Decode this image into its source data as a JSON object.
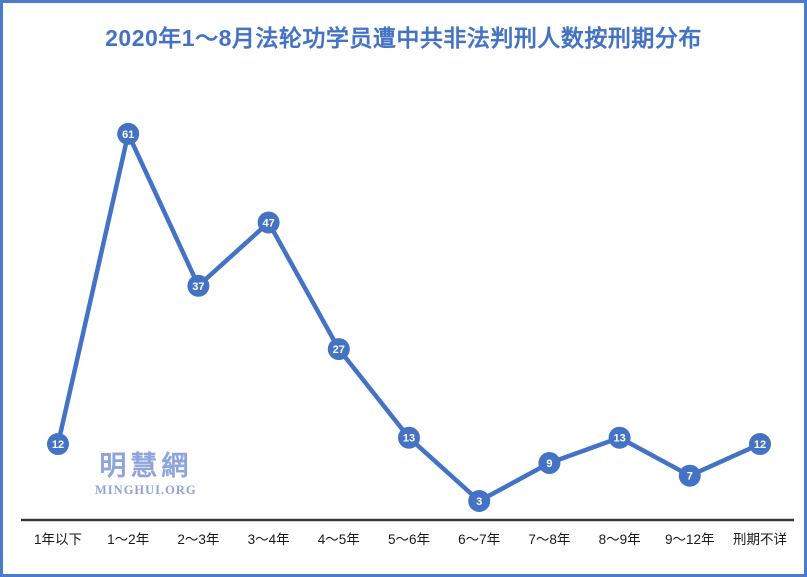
{
  "chart_data": {
    "type": "line",
    "title": "2020年1～8月法轮功学员遭中共非法判刑人数按刑期分布",
    "categories": [
      "1年以下",
      "1～2年",
      "2～3年",
      "3～4年",
      "4～5年",
      "5～6年",
      "6～7年",
      "7～8年",
      "8～9年",
      "9～12年",
      "刑期不详"
    ],
    "values": [
      12,
      61,
      37,
      47,
      27,
      13,
      3,
      9,
      13,
      7,
      12
    ],
    "xlabel": "",
    "ylabel": "",
    "ylim": [
      0,
      70
    ],
    "grid": false,
    "legend_position": "none",
    "series_name": "判刑人数",
    "colors": {
      "series": "#4472c4",
      "marker_fill": "#4472c4",
      "marker_label": "#ffffff",
      "title": "#4472c4",
      "axis_line": "#3a3a3a",
      "tick_label": "#1a1a1a",
      "frame_border": "#4a7cc9",
      "watermark": "#8ea4dc"
    }
  },
  "watermark": {
    "cjk": "明慧網",
    "latin": "MINGHUI.ORG"
  }
}
